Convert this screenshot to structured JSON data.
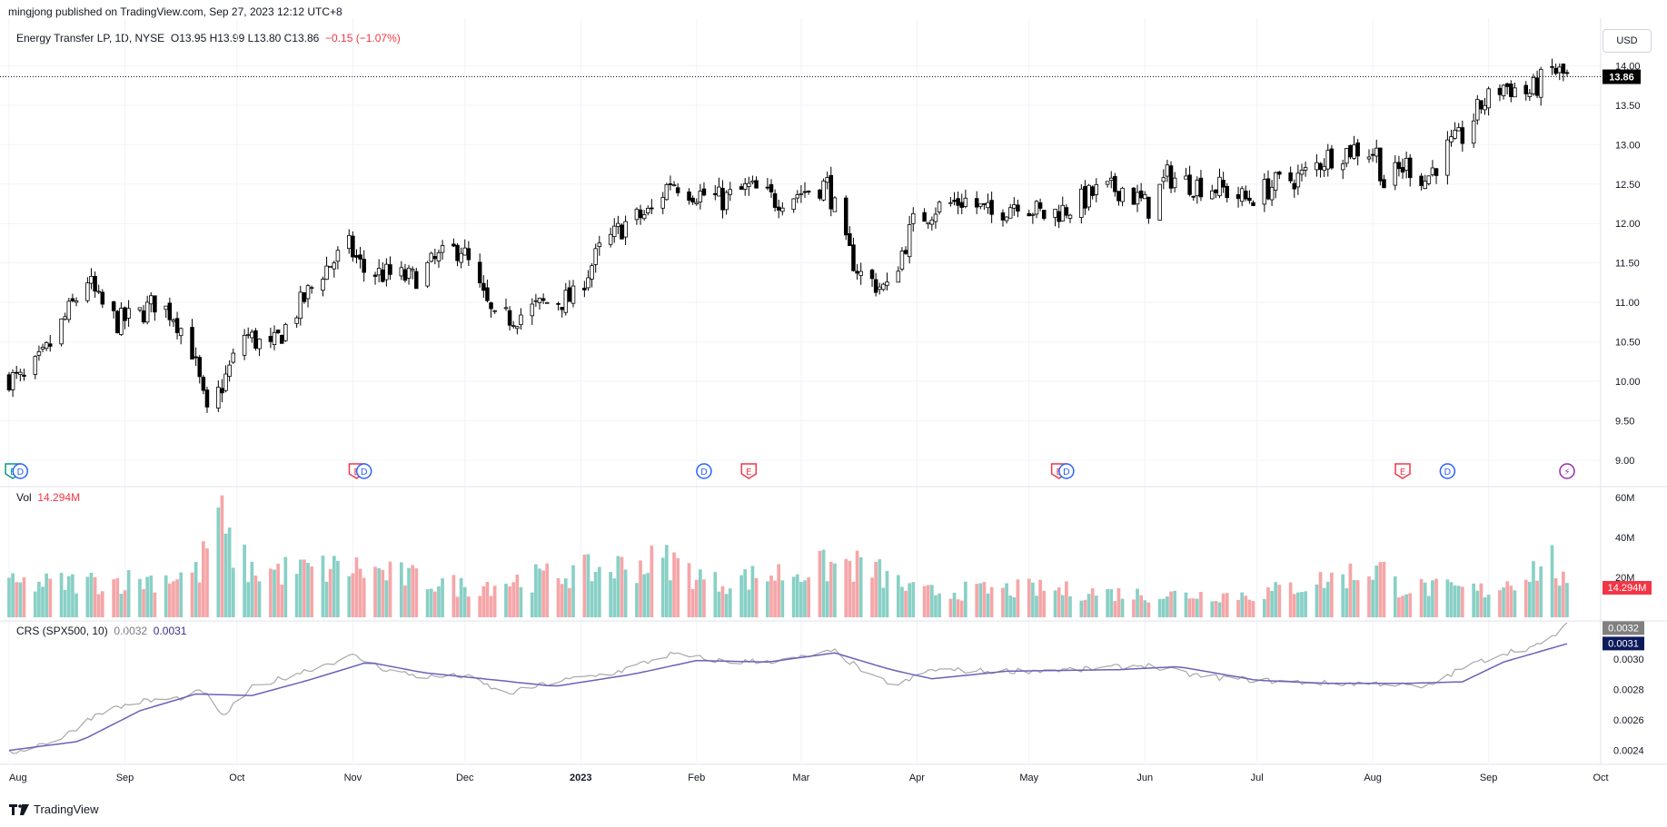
{
  "publish_text": "mingjong published on TradingView.com, Sep 27, 2023 12:12 UTC+8",
  "footer_brand": "TradingView",
  "currency_button": "USD",
  "legend": {
    "symbol": "Energy Transfer LP, 1D, NYSE",
    "ohlc": "O13.95 H13.99 L13.80 C13.86",
    "change": "−0.15 (−1.07%)"
  },
  "volume_legend": {
    "label": "Vol",
    "value": "14.294M"
  },
  "crs_legend": {
    "label": "CRS (SPX500, 10)",
    "value1": "0.0032",
    "value2": "0.0031"
  },
  "colors": {
    "up_volume": "#89d0c6",
    "down_volume": "#f5a6a8",
    "crs_line": "#a8a8a8",
    "crs_ma": "#6a62b8",
    "candle": "#000000",
    "last_price_badge": "#000000",
    "volume_badge": "#f23645",
    "crs_badge_1": "#808080",
    "crs_badge_2": "#0c1a5c"
  },
  "chart_data": [
    {
      "type": "candlestick",
      "series_name": "Energy Transfer LP",
      "x_dates": [
        "2022-08-01",
        "2023-10-01"
      ],
      "x_tick_labels": [
        "Aug",
        "Sep",
        "Oct",
        "Nov",
        "Dec",
        "2023",
        "Feb",
        "Mar",
        "Apr",
        "May",
        "Jun",
        "Jul",
        "Aug",
        "Sep",
        "Oct"
      ],
      "y_tick_labels": [
        "14.00",
        "13.50",
        "13.00",
        "12.50",
        "12.00",
        "11.50",
        "11.00",
        "10.50",
        "10.00",
        "9.50",
        "9.00"
      ],
      "ylim": [
        8.85,
        14.2
      ],
      "last_price": "13.86",
      "close_anchors": [
        [
          "2022-08-01",
          10.05
        ],
        [
          "2022-08-05",
          10.0
        ],
        [
          "2022-08-10",
          10.3
        ],
        [
          "2022-08-16",
          10.8
        ],
        [
          "2022-08-22",
          11.3
        ],
        [
          "2022-08-25",
          11.0
        ],
        [
          "2022-08-30",
          10.75
        ],
        [
          "2022-09-05",
          10.85
        ],
        [
          "2022-09-09",
          11.0
        ],
        [
          "2022-09-14",
          10.85
        ],
        [
          "2022-09-19",
          10.4
        ],
        [
          "2022-09-23",
          9.55
        ],
        [
          "2022-09-28",
          10.05
        ],
        [
          "2022-10-03",
          10.6
        ],
        [
          "2022-10-10",
          10.4
        ],
        [
          "2022-10-17",
          10.9
        ],
        [
          "2022-10-24",
          11.4
        ],
        [
          "2022-10-31",
          11.7
        ],
        [
          "2022-11-04",
          11.4
        ],
        [
          "2022-11-10",
          11.35
        ],
        [
          "2022-11-17",
          11.3
        ],
        [
          "2022-11-24",
          11.55
        ],
        [
          "2022-11-30",
          11.7
        ],
        [
          "2022-12-05",
          11.15
        ],
        [
          "2022-12-09",
          10.75
        ],
        [
          "2022-12-16",
          10.85
        ],
        [
          "2022-12-23",
          11.0
        ],
        [
          "2022-12-30",
          11.05
        ],
        [
          "2023-01-06",
          11.65
        ],
        [
          "2023-01-13",
          12.0
        ],
        [
          "2023-01-20",
          12.15
        ],
        [
          "2023-01-25",
          12.55
        ],
        [
          "2023-01-31",
          12.4
        ],
        [
          "2023-02-08",
          12.3
        ],
        [
          "2023-02-15",
          12.45
        ],
        [
          "2023-02-22",
          12.3
        ],
        [
          "2023-03-01",
          12.4
        ],
        [
          "2023-03-08",
          12.5
        ],
        [
          "2023-03-13",
          11.7
        ],
        [
          "2023-03-17",
          11.35
        ],
        [
          "2023-03-24",
          11.15
        ],
        [
          "2023-03-31",
          12.0
        ],
        [
          "2023-04-06",
          12.2
        ],
        [
          "2023-04-14",
          12.3
        ],
        [
          "2023-04-21",
          12.1
        ],
        [
          "2023-04-28",
          12.3
        ],
        [
          "2023-05-05",
          12.1
        ],
        [
          "2023-05-12",
          12.2
        ],
        [
          "2023-05-19",
          12.4
        ],
        [
          "2023-05-26",
          12.45
        ],
        [
          "2023-06-02",
          12.2
        ],
        [
          "2023-06-07",
          12.6
        ],
        [
          "2023-06-14",
          12.5
        ],
        [
          "2023-06-21",
          12.45
        ],
        [
          "2023-06-28",
          12.3
        ],
        [
          "2023-07-06",
          12.5
        ],
        [
          "2023-07-13",
          12.6
        ],
        [
          "2023-07-20",
          12.85
        ],
        [
          "2023-07-27",
          12.95
        ],
        [
          "2023-08-02",
          12.9
        ],
        [
          "2023-08-04",
          12.5
        ],
        [
          "2023-08-10",
          12.75
        ],
        [
          "2023-08-15",
          12.55
        ],
        [
          "2023-08-21",
          12.95
        ],
        [
          "2023-08-25",
          13.1
        ],
        [
          "2023-08-30",
          13.5
        ],
        [
          "2023-09-05",
          13.75
        ],
        [
          "2023-09-12",
          13.65
        ],
        [
          "2023-09-18",
          13.95
        ],
        [
          "2023-09-22",
          13.86
        ]
      ]
    },
    {
      "type": "bar",
      "series_name": "Vol",
      "y_tick_labels": [
        "60M",
        "40M",
        "20M"
      ],
      "ylim": [
        0,
        60000000
      ],
      "last_value": "14.294M",
      "volume_anchors": [
        [
          "2022-08-01",
          17
        ],
        [
          "2022-09-08",
          20
        ],
        [
          "2022-09-21",
          24
        ],
        [
          "2022-09-26",
          58
        ],
        [
          "2022-09-28",
          40
        ],
        [
          "2022-10-05",
          24
        ],
        [
          "2022-11-01",
          26
        ],
        [
          "2022-12-01",
          16
        ],
        [
          "2023-01-25",
          30
        ],
        [
          "2023-02-05",
          18
        ],
        [
          "2023-03-13",
          28
        ],
        [
          "2023-03-20",
          25
        ],
        [
          "2023-04-01",
          13
        ],
        [
          "2023-05-01",
          15
        ],
        [
          "2023-06-01",
          12
        ],
        [
          "2023-07-01",
          12
        ],
        [
          "2023-08-03",
          26
        ],
        [
          "2023-08-08",
          16
        ],
        [
          "2023-09-01",
          14
        ],
        [
          "2023-09-18",
          30
        ],
        [
          "2023-09-22",
          14
        ]
      ]
    },
    {
      "type": "line",
      "series": [
        {
          "name": "CRS (SPX500, 10)",
          "last_value": "0.0032"
        },
        {
          "name": "",
          "last_value": "0.0031"
        }
      ],
      "y_tick_labels": [
        "0.0030",
        "0.0028",
        "0.0026",
        "0.0024"
      ],
      "ylim": [
        0.00232,
        0.00325
      ],
      "crs_anchors": [
        [
          "2022-08-01",
          0.00238
        ],
        [
          "2022-08-15",
          0.00248
        ],
        [
          "2022-08-25",
          0.00265
        ],
        [
          "2022-09-05",
          0.00272
        ],
        [
          "2022-09-15",
          0.00274
        ],
        [
          "2022-09-22",
          0.00279
        ],
        [
          "2022-09-27",
          0.00262
        ],
        [
          "2022-10-05",
          0.00281
        ],
        [
          "2022-10-20",
          0.00293
        ],
        [
          "2022-11-01",
          0.00302
        ],
        [
          "2022-11-10",
          0.00293
        ],
        [
          "2022-11-20",
          0.00288
        ],
        [
          "2022-12-01",
          0.00289
        ],
        [
          "2022-12-12",
          0.00277
        ],
        [
          "2022-12-25",
          0.00285
        ],
        [
          "2023-01-10",
          0.00291
        ],
        [
          "2023-01-25",
          0.00303
        ],
        [
          "2023-02-10",
          0.00298
        ],
        [
          "2023-02-25",
          0.00299
        ],
        [
          "2023-03-10",
          0.00305
        ],
        [
          "2023-03-20",
          0.00288
        ],
        [
          "2023-03-27",
          0.00283
        ],
        [
          "2023-04-05",
          0.00293
        ],
        [
          "2023-04-20",
          0.00292
        ],
        [
          "2023-05-15",
          0.00293
        ],
        [
          "2023-06-01",
          0.00296
        ],
        [
          "2023-06-15",
          0.00289
        ],
        [
          "2023-07-01",
          0.00286
        ],
        [
          "2023-07-20",
          0.00284
        ],
        [
          "2023-08-05",
          0.00284
        ],
        [
          "2023-08-15",
          0.00281
        ],
        [
          "2023-08-25",
          0.00294
        ],
        [
          "2023-09-05",
          0.00304
        ],
        [
          "2023-09-15",
          0.00309
        ],
        [
          "2023-09-22",
          0.00322
        ]
      ],
      "crs_ma_anchors": [
        [
          "2022-08-01",
          0.0024
        ],
        [
          "2022-08-20",
          0.00246
        ],
        [
          "2022-09-05",
          0.00266
        ],
        [
          "2022-09-20",
          0.00277
        ],
        [
          "2022-10-05",
          0.00276
        ],
        [
          "2022-10-20",
          0.00286
        ],
        [
          "2022-11-05",
          0.00298
        ],
        [
          "2022-11-20",
          0.00291
        ],
        [
          "2022-12-10",
          0.00286
        ],
        [
          "2022-12-25",
          0.00282
        ],
        [
          "2023-01-15",
          0.0029
        ],
        [
          "2023-02-01",
          0.00299
        ],
        [
          "2023-02-20",
          0.00298
        ],
        [
          "2023-03-10",
          0.00304
        ],
        [
          "2023-03-25",
          0.00293
        ],
        [
          "2023-04-05",
          0.00287
        ],
        [
          "2023-04-25",
          0.00292
        ],
        [
          "2023-05-25",
          0.00293
        ],
        [
          "2023-06-10",
          0.00295
        ],
        [
          "2023-07-01",
          0.00286
        ],
        [
          "2023-07-20",
          0.00284
        ],
        [
          "2023-08-10",
          0.00284
        ],
        [
          "2023-08-25",
          0.00285
        ],
        [
          "2023-09-05",
          0.00298
        ],
        [
          "2023-09-22",
          0.0031
        ]
      ]
    }
  ],
  "event_markers": [
    {
      "type": "E",
      "date": "2022-08-02",
      "color": "#089981"
    },
    {
      "type": "D",
      "date": "2022-08-04",
      "color": "#2962ff"
    },
    {
      "type": "E",
      "date": "2022-11-02",
      "color": "#f23645"
    },
    {
      "type": "D",
      "date": "2022-11-04",
      "color": "#2962ff"
    },
    {
      "type": "D",
      "date": "2023-02-03",
      "color": "#2962ff"
    },
    {
      "type": "E",
      "date": "2023-02-15",
      "color": "#f23645"
    },
    {
      "type": "E",
      "date": "2023-05-09",
      "color": "#f23645"
    },
    {
      "type": "D",
      "date": "2023-05-11",
      "color": "#2962ff"
    },
    {
      "type": "E",
      "date": "2023-08-09",
      "color": "#f23645"
    },
    {
      "type": "D",
      "date": "2023-08-21",
      "color": "#2962ff"
    },
    {
      "type": "⚡",
      "date": "2023-09-22",
      "color": "#9c27b0"
    }
  ]
}
